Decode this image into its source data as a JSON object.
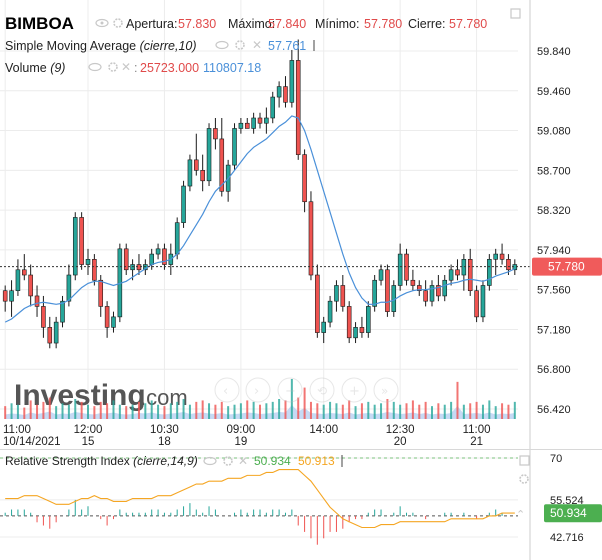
{
  "legend": {
    "symbol": "BIMBOA",
    "ohlc": [
      {
        "label": "Apertura:",
        "value": "57.830"
      },
      {
        "label": "Máximo:",
        "value": "57.840"
      },
      {
        "label": "Mínimo:",
        "value": "57.780"
      },
      {
        "label": "Cierre:",
        "value": "57.780"
      }
    ],
    "sma_label": "Simple Moving Average",
    "sma_params": "(cierre,10)",
    "sma_value": "57.761",
    "volume_label": "Volume",
    "volume_params": "(9)",
    "volume_value": "25723.000",
    "volume_value2": "110807.18"
  },
  "watermark": {
    "brand": "Investing",
    "suffix": ".com"
  },
  "rsi_legend": {
    "label": "Relative Strength Index",
    "params": "(cierre,14,9)",
    "value1": "50.934",
    "value2": "50.913"
  },
  "colors": {
    "up": "#26a69a",
    "down": "#ef5350",
    "sma": "#4a90d9",
    "rsi_signal": "#f5a623",
    "price_tag": "#f05b5b",
    "rsi_tag": "#4caf50",
    "volume_area": "#b3cdf0",
    "grid": "#ececec"
  },
  "icons": [
    "eye-icon",
    "gear-icon",
    "close-icon"
  ],
  "chart_data": [
    {
      "type": "candlestick",
      "title": "BIMBOA",
      "ylim": [
        56.3,
        59.95
      ],
      "y_ticks": [
        "59.840",
        "59.460",
        "59.080",
        "58.700",
        "58.320",
        "57.940",
        "57.560",
        "57.180",
        "56.800",
        "56.420"
      ],
      "x_tick_labels": [
        {
          "time": "11:00",
          "date": "10/14/2021"
        },
        {
          "time": "12:00",
          "date": "15"
        },
        {
          "time": "10:30",
          "date": "18"
        },
        {
          "time": "09:00",
          "date": "19"
        },
        {
          "time": "14:00",
          "date": ""
        },
        {
          "time": "12:30",
          "date": "20"
        },
        {
          "time": "11:00",
          "date": "21"
        }
      ],
      "last_price": "57.780",
      "ohlc": [
        [
          57.55,
          57.6,
          57.35,
          57.45
        ],
        [
          57.45,
          57.65,
          57.3,
          57.55
        ],
        [
          57.55,
          57.85,
          57.5,
          57.75
        ],
        [
          57.75,
          57.9,
          57.65,
          57.7
        ],
        [
          57.7,
          57.8,
          57.4,
          57.5
        ],
        [
          57.5,
          57.6,
          57.3,
          57.4
        ],
        [
          57.4,
          57.5,
          57.1,
          57.2
        ],
        [
          57.2,
          57.3,
          57.0,
          57.05
        ],
        [
          57.05,
          57.3,
          57.0,
          57.25
        ],
        [
          57.25,
          57.5,
          57.2,
          57.45
        ],
        [
          57.45,
          57.8,
          57.4,
          57.7
        ],
        [
          57.7,
          58.3,
          57.65,
          58.25
        ],
        [
          58.25,
          58.3,
          57.75,
          57.8
        ],
        [
          57.8,
          57.95,
          57.7,
          57.85
        ],
        [
          57.85,
          57.9,
          57.6,
          57.65
        ],
        [
          57.65,
          57.7,
          57.3,
          57.4
        ],
        [
          57.4,
          57.45,
          57.1,
          57.2
        ],
        [
          57.2,
          57.35,
          57.15,
          57.3
        ],
        [
          57.3,
          58.0,
          57.25,
          57.95
        ],
        [
          57.95,
          58.0,
          57.7,
          57.75
        ],
        [
          57.75,
          57.85,
          57.65,
          57.8
        ],
        [
          57.8,
          57.9,
          57.7,
          57.75
        ],
        [
          57.75,
          57.85,
          57.7,
          57.8
        ],
        [
          57.8,
          57.95,
          57.75,
          57.9
        ],
        [
          57.9,
          58.0,
          57.85,
          57.95
        ],
        [
          57.95,
          58.0,
          57.75,
          57.8
        ],
        [
          57.8,
          58.0,
          57.7,
          57.9
        ],
        [
          57.9,
          58.25,
          57.85,
          58.2
        ],
        [
          58.2,
          58.6,
          58.15,
          58.55
        ],
        [
          58.55,
          58.85,
          58.5,
          58.8
        ],
        [
          58.8,
          59.05,
          58.65,
          58.7
        ],
        [
          58.7,
          58.85,
          58.5,
          58.6
        ],
        [
          58.6,
          59.15,
          58.55,
          59.1
        ],
        [
          59.1,
          59.2,
          58.9,
          59.0
        ],
        [
          59.0,
          59.2,
          58.45,
          58.5
        ],
        [
          58.5,
          58.8,
          58.4,
          58.75
        ],
        [
          58.75,
          59.15,
          58.7,
          59.1
        ],
        [
          59.1,
          59.2,
          59.05,
          59.15
        ],
        [
          59.15,
          59.2,
          59.1,
          59.1
        ],
        [
          59.1,
          59.25,
          59.05,
          59.2
        ],
        [
          59.2,
          59.25,
          59.1,
          59.15
        ],
        [
          59.15,
          59.3,
          59.05,
          59.2
        ],
        [
          59.2,
          59.45,
          59.15,
          59.4
        ],
        [
          59.4,
          59.55,
          59.3,
          59.5
        ],
        [
          59.5,
          59.6,
          59.3,
          59.35
        ],
        [
          59.35,
          59.85,
          59.3,
          59.75
        ],
        [
          59.75,
          59.95,
          58.8,
          58.85
        ],
        [
          58.85,
          58.9,
          58.3,
          58.4
        ],
        [
          58.4,
          58.5,
          57.65,
          57.7
        ],
        [
          57.7,
          57.8,
          57.1,
          57.15
        ],
        [
          57.15,
          57.3,
          57.05,
          57.25
        ],
        [
          57.25,
          57.5,
          57.2,
          57.45
        ],
        [
          57.45,
          57.65,
          57.35,
          57.6
        ],
        [
          57.6,
          57.7,
          57.35,
          57.4
        ],
        [
          57.4,
          57.45,
          57.05,
          57.1
        ],
        [
          57.1,
          57.25,
          57.05,
          57.2
        ],
        [
          57.2,
          57.3,
          57.1,
          57.15
        ],
        [
          57.15,
          57.45,
          57.1,
          57.4
        ],
        [
          57.4,
          57.7,
          57.35,
          57.65
        ],
        [
          57.65,
          57.8,
          57.6,
          57.75
        ],
        [
          57.75,
          57.8,
          57.3,
          57.35
        ],
        [
          57.35,
          57.65,
          57.3,
          57.6
        ],
        [
          57.6,
          58.0,
          57.55,
          57.9
        ],
        [
          57.9,
          57.95,
          57.6,
          57.65
        ],
        [
          57.65,
          57.75,
          57.55,
          57.6
        ],
        [
          57.6,
          57.65,
          57.5,
          57.55
        ],
        [
          57.55,
          57.65,
          57.4,
          57.45
        ],
        [
          57.45,
          57.65,
          57.4,
          57.6
        ],
        [
          57.6,
          57.7,
          57.45,
          57.5
        ],
        [
          57.5,
          57.7,
          57.45,
          57.65
        ],
        [
          57.65,
          57.8,
          57.6,
          57.75
        ],
        [
          57.75,
          57.85,
          57.65,
          57.7
        ],
        [
          57.7,
          57.9,
          57.55,
          57.85
        ],
        [
          57.85,
          57.95,
          57.5,
          57.55
        ],
        [
          57.55,
          57.6,
          57.25,
          57.3
        ],
        [
          57.3,
          57.65,
          57.25,
          57.6
        ],
        [
          57.6,
          57.9,
          57.55,
          57.85
        ],
        [
          57.85,
          57.95,
          57.7,
          57.9
        ],
        [
          57.9,
          58.0,
          57.8,
          57.85
        ],
        [
          57.85,
          57.9,
          57.7,
          57.75
        ],
        [
          57.75,
          57.85,
          57.7,
          57.8
        ]
      ],
      "sma": [
        57.25,
        57.28,
        57.33,
        57.38,
        57.41,
        57.43,
        57.44,
        57.43,
        57.42,
        57.43,
        57.46,
        57.52,
        57.58,
        57.62,
        57.64,
        57.64,
        57.62,
        57.6,
        57.62,
        57.64,
        57.68,
        57.72,
        57.76,
        57.8,
        57.82,
        57.83,
        57.85,
        57.9,
        57.98,
        58.08,
        58.18,
        58.28,
        58.4,
        58.5,
        58.56,
        58.62,
        58.7,
        58.78,
        58.86,
        58.92,
        58.96,
        59.0,
        59.06,
        59.12,
        59.16,
        59.22,
        59.2,
        59.08,
        58.9,
        58.7,
        58.5,
        58.3,
        58.1,
        57.9,
        57.72,
        57.58,
        57.48,
        57.42,
        57.42,
        57.44,
        57.44,
        57.46,
        57.5,
        57.53,
        57.55,
        57.56,
        57.56,
        57.57,
        57.58,
        57.6,
        57.62,
        57.63,
        57.65,
        57.66,
        57.65,
        57.64,
        57.66,
        57.69,
        57.71,
        57.73,
        57.76
      ],
      "volume": [
        9,
        11,
        10,
        8,
        13,
        10,
        12,
        15,
        9,
        11,
        10,
        14,
        12,
        10,
        9,
        12,
        11,
        13,
        10,
        9,
        10,
        12,
        11,
        13,
        10,
        9,
        11,
        12,
        14,
        10,
        12,
        13,
        11,
        10,
        12,
        9,
        10,
        11,
        13,
        12,
        10,
        11,
        12,
        14,
        13,
        28,
        15,
        22,
        12,
        11,
        10,
        12,
        11,
        10,
        13,
        9,
        11,
        12,
        10,
        11,
        14,
        12,
        10,
        11,
        13,
        10,
        12,
        9,
        11,
        10,
        12,
        26,
        10,
        11,
        12,
        10,
        13,
        9,
        11,
        10,
        12
      ]
    },
    {
      "type": "line",
      "title": "Relative Strength Index",
      "y_ticks": [
        "70",
        "55.524",
        "42.716"
      ],
      "last_value": "50.934",
      "rsi": [
        55,
        56,
        58,
        59,
        57,
        55,
        53,
        51,
        52,
        54,
        56,
        60,
        58,
        59,
        57,
        55,
        53,
        54,
        57,
        56,
        57,
        57,
        57,
        58,
        59,
        58,
        58,
        60,
        62,
        64,
        63,
        62,
        65,
        64,
        62,
        63,
        64,
        65,
        65,
        66,
        66,
        66,
        67,
        68,
        67,
        68,
        63,
        59,
        55,
        50,
        49,
        48,
        46,
        45,
        46,
        46,
        45,
        47,
        48,
        49,
        47,
        48,
        51,
        49,
        49,
        48,
        47,
        48,
        48,
        49,
        50,
        49,
        50,
        49,
        48,
        49,
        51,
        52,
        52,
        51,
        51
      ],
      "rsi_signal": [
        56,
        56,
        56,
        57,
        57,
        57,
        56,
        55,
        54,
        54,
        54,
        55,
        56,
        56,
        57,
        56,
        56,
        55,
        55,
        55,
        56,
        56,
        56,
        56,
        57,
        57,
        57,
        58,
        59,
        60,
        61,
        61,
        62,
        62,
        62,
        63,
        63,
        63,
        64,
        64,
        64,
        65,
        65,
        66,
        66,
        66,
        66,
        64,
        62,
        59,
        56,
        53,
        51,
        49,
        48,
        47,
        46,
        46,
        46,
        47,
        47,
        47,
        48,
        48,
        48,
        48,
        48,
        48,
        48,
        48,
        49,
        49,
        49,
        49,
        49,
        49,
        50,
        50,
        51,
        51,
        51
      ],
      "rsi_hist": [
        1,
        2,
        2,
        2,
        1,
        -2,
        -3,
        -4,
        -2,
        0,
        2,
        5,
        2,
        3,
        0,
        -1,
        -3,
        -1,
        2,
        1,
        1,
        1,
        1,
        2,
        2,
        1,
        1,
        2,
        3,
        4,
        2,
        1,
        3,
        2,
        0,
        0,
        1,
        2,
        1,
        2,
        2,
        1,
        2,
        2,
        1,
        2,
        -3,
        -5,
        -7,
        -9,
        -7,
        -5,
        -5,
        -4,
        -2,
        -1,
        -1,
        1,
        2,
        2,
        0,
        1,
        3,
        1,
        1,
        0,
        -1,
        0,
        0,
        1,
        1,
        0,
        1,
        0,
        -1,
        0,
        1,
        2,
        1,
        0,
        0
      ]
    }
  ]
}
